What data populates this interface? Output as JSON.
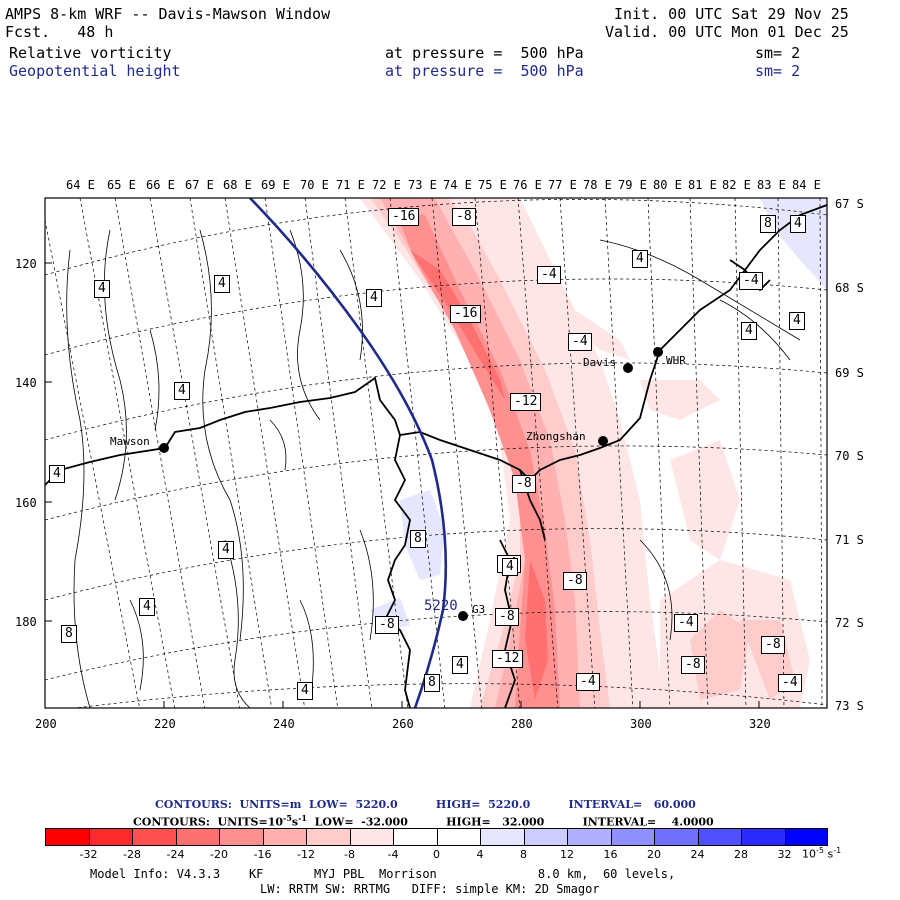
{
  "header": {
    "title": "AMPS 8-km WRF -- Davis-Mawson Window",
    "fcst": "Fcst.   48 h",
    "init": "Init. 00 UTC Sat 29 Nov 25",
    "valid": "Valid. 00 UTC Mon 01 Dec 25",
    "field1": {
      "name": "Relative vorticity",
      "pressure": "at pressure =  500 hPa",
      "sm": "sm= 2"
    },
    "field2": {
      "name": "Geopotential height",
      "pressure": "at pressure =  500 hPa",
      "sm": "sm= 2"
    }
  },
  "top_lon_labels": [
    "64 E",
    "65 E",
    "66 E",
    "67 E",
    "68 E",
    "69 E",
    "70 E",
    "71 E",
    "72 E",
    "73 E",
    "74 E",
    "75 E",
    "76 E",
    "77 E",
    "78 E",
    "79 E",
    "80 E",
    "81 E",
    "82 E",
    "83 E",
    "84 E"
  ],
  "right_lat_labels": [
    "67 S",
    "68 S",
    "69 S",
    "70 S",
    "71 S",
    "72 S",
    "73 S"
  ],
  "left_grid_labels": [
    "120",
    "140",
    "160",
    "180"
  ],
  "bottom_grid_labels": [
    "200",
    "220",
    "240",
    "260",
    "280",
    "300",
    "320"
  ],
  "stations": [
    {
      "name": "Mawson"
    },
    {
      "name": "Davis"
    },
    {
      "name": "WHR"
    },
    {
      "name": "Zhongshan"
    },
    {
      "name": "G3"
    }
  ],
  "contour_labels": {
    "height": "5220",
    "vorticity": [
      "-16",
      "-8",
      "-4",
      "4",
      "-16",
      "-4",
      "4",
      "4",
      "4",
      "-4",
      "4",
      "4",
      "-12",
      "4",
      "4",
      "-8",
      "8",
      "4",
      "-4",
      "4",
      "-8",
      "8",
      "-8",
      "-4",
      "-8",
      "4",
      "-12",
      "-8",
      "-4",
      "4",
      "-8",
      "-4",
      "8",
      "8",
      "4",
      "4"
    ]
  },
  "legend": {
    "contours1": "CONTOURS:  UNITS=m  LOW=  5220.0          HIGH=  5220.0          INTERVAL=   60.000",
    "contours2_a": "CONTOURS:  UNITS=10",
    "contours2_b": "s",
    "contours2_c": "  LOW=  -32.000          HIGH=   32.000          INTERVAL=    4.0000",
    "exp": "-5",
    "exp_neg1": "-1",
    "colors": [
      "#ff0000",
      "#ff2b2b",
      "#ff5050",
      "#ff7070",
      "#ff9090",
      "#ffb0b0",
      "#ffcccc",
      "#ffe6e6",
      "#ffffff",
      "#ffffff",
      "#e6e6ff",
      "#ccccff",
      "#b0b0ff",
      "#9090ff",
      "#7070ff",
      "#5050ff",
      "#2b2bff",
      "#0000ff"
    ],
    "ticks": [
      "-32",
      "-28",
      "-24",
      "-20",
      "-16",
      "-12",
      "-8",
      "-4",
      "0",
      "4",
      "8",
      "12",
      "16",
      "20",
      "24",
      "28",
      "32"
    ],
    "units": "10",
    "model_info": "Model Info: V4.3.3    KF       MYJ PBL  Morrison              8.0 km,  60 levels,",
    "model_info2": "LW: RRTM SW: RRTMG   DIFF: simple KM: 2D Smagor"
  }
}
